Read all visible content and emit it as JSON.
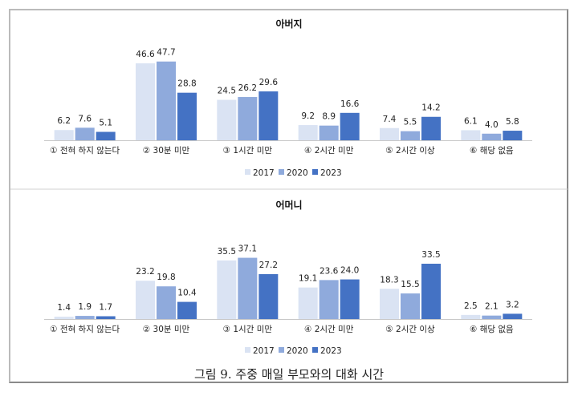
{
  "caption": "그림 9. 주중 매일 부모와의 대화 시간",
  "colors": {
    "2017": "#dae3f3",
    "2020": "#8faadc",
    "2023": "#4472c4"
  },
  "chart_data": [
    {
      "type": "bar",
      "title": "아버지",
      "categories": [
        "① 전혀 하지 않는다",
        "② 30분 미만",
        "③ 1시간 미만",
        "④ 2시간 미만",
        "⑤ 2시간 이상",
        "⑥ 해당 없음"
      ],
      "series": [
        {
          "name": "2017",
          "values": [
            6.2,
            46.6,
            24.5,
            9.2,
            7.4,
            6.1
          ]
        },
        {
          "name": "2020",
          "values": [
            7.6,
            47.7,
            26.2,
            8.9,
            5.5,
            4.0
          ]
        },
        {
          "name": "2023",
          "values": [
            5.1,
            28.8,
            29.6,
            16.6,
            14.2,
            5.8
          ]
        }
      ],
      "legend": "bottom",
      "grid": false
    },
    {
      "type": "bar",
      "title": "어머니",
      "categories": [
        "① 전혀 하지 않는다",
        "② 30분 미만",
        "③ 1시간 미만",
        "④ 2시간 미만",
        "⑤ 2시간 이상",
        "⑥ 해당 없음"
      ],
      "series": [
        {
          "name": "2017",
          "values": [
            1.4,
            23.2,
            35.5,
            19.1,
            18.3,
            2.5
          ]
        },
        {
          "name": "2020",
          "values": [
            1.9,
            19.8,
            37.1,
            23.6,
            15.5,
            2.1
          ]
        },
        {
          "name": "2023",
          "values": [
            1.7,
            10.4,
            27.2,
            24.0,
            33.5,
            3.2
          ]
        }
      ],
      "legend": "bottom",
      "grid": false
    }
  ]
}
